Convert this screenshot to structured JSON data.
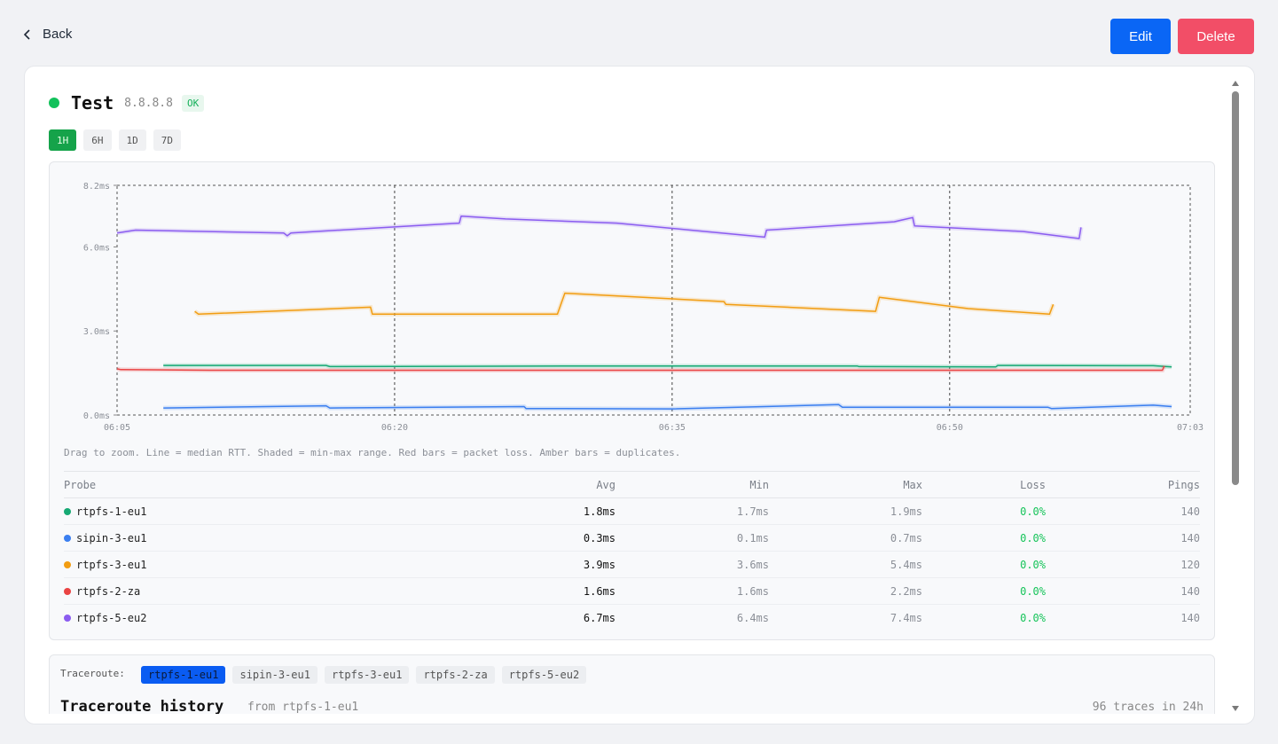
{
  "header": {
    "back_label": "Back",
    "edit_label": "Edit",
    "delete_label": "Delete"
  },
  "target": {
    "name": "Test",
    "ip": "8.8.8.8",
    "status": "OK"
  },
  "ranges": [
    "1H",
    "6H",
    "1D",
    "7D"
  ],
  "active_range": "1H",
  "hint": "Drag to zoom. Line = median RTT. Shaded = min-max range. Red bars = packet loss. Amber bars = duplicates.",
  "table": {
    "headers": [
      "Probe",
      "Avg",
      "Min",
      "Max",
      "Loss",
      "Pings"
    ],
    "rows": [
      {
        "probe": "rtpfs-1-eu1",
        "avg": "1.8ms",
        "min": "1.7ms",
        "max": "1.9ms",
        "loss": "0.0%",
        "pings": "140",
        "color": "#16a974"
      },
      {
        "probe": "sipin-3-eu1",
        "avg": "0.3ms",
        "min": "0.1ms",
        "max": "0.7ms",
        "loss": "0.0%",
        "pings": "140",
        "color": "#3b7ff0"
      },
      {
        "probe": "rtpfs-3-eu1",
        "avg": "3.9ms",
        "min": "3.6ms",
        "max": "5.4ms",
        "loss": "0.0%",
        "pings": "120",
        "color": "#f29d12"
      },
      {
        "probe": "rtpfs-2-za",
        "avg": "1.6ms",
        "min": "1.6ms",
        "max": "2.2ms",
        "loss": "0.0%",
        "pings": "140",
        "color": "#ea4343"
      },
      {
        "probe": "rtpfs-5-eu2",
        "avg": "6.7ms",
        "min": "6.4ms",
        "max": "7.4ms",
        "loss": "0.0%",
        "pings": "140",
        "color": "#8b5cf0"
      }
    ]
  },
  "traceroute": {
    "label": "Traceroute:",
    "tabs": [
      "rtpfs-1-eu1",
      "sipin-3-eu1",
      "rtpfs-3-eu1",
      "rtpfs-2-za",
      "rtpfs-5-eu2"
    ],
    "active": "rtpfs-1-eu1",
    "title": "Traceroute history",
    "from": "from rtpfs-1-eu1",
    "count": "96 traces in 24h"
  },
  "chart_data": {
    "type": "line",
    "y_ticks": [
      "0.0ms",
      "3.0ms",
      "6.0ms",
      "8.2ms"
    ],
    "ylim": [
      0,
      8.2
    ],
    "x_ticks": [
      "06:05",
      "06:20",
      "06:35",
      "06:50",
      "07:03"
    ],
    "x_tick_minutes": [
      0,
      15,
      30,
      45,
      58
    ],
    "xlim_minutes": [
      0,
      58
    ],
    "series": [
      {
        "name": "rtpfs-5-eu2",
        "color": "#8b5cf0",
        "points": [
          [
            0,
            6.5
          ],
          [
            1,
            6.6
          ],
          [
            9,
            6.5
          ],
          [
            9.2,
            6.4
          ],
          [
            9.4,
            6.5
          ],
          [
            18.5,
            6.85
          ],
          [
            18.6,
            7.1
          ],
          [
            21,
            7.0
          ],
          [
            27,
            6.85
          ],
          [
            31,
            6.6
          ],
          [
            35,
            6.35
          ],
          [
            35.1,
            6.6
          ],
          [
            42,
            6.9
          ],
          [
            43,
            7.05
          ],
          [
            43.1,
            6.75
          ],
          [
            49,
            6.55
          ],
          [
            52,
            6.3
          ],
          [
            52.1,
            6.7
          ]
        ]
      },
      {
        "name": "rtpfs-3-eu1",
        "color": "#f29d12",
        "points": [
          [
            4.2,
            3.7
          ],
          [
            4.4,
            3.6
          ],
          [
            13.7,
            3.85
          ],
          [
            13.8,
            3.6
          ],
          [
            23.8,
            3.6
          ],
          [
            24.2,
            4.35
          ],
          [
            32.8,
            4.05
          ],
          [
            32.9,
            3.95
          ],
          [
            41,
            3.7
          ],
          [
            41.2,
            4.2
          ],
          [
            46,
            3.8
          ],
          [
            50.4,
            3.6
          ],
          [
            50.6,
            3.95
          ]
        ]
      },
      {
        "name": "rtpfs-1-eu1",
        "color": "#16a974",
        "points": [
          [
            2.5,
            1.77
          ],
          [
            11.3,
            1.77
          ],
          [
            11.5,
            1.73
          ],
          [
            20,
            1.74
          ],
          [
            25,
            1.75
          ],
          [
            40,
            1.75
          ],
          [
            40.1,
            1.73
          ],
          [
            47.5,
            1.72
          ],
          [
            47.6,
            1.77
          ],
          [
            56,
            1.76
          ],
          [
            57,
            1.72
          ]
        ]
      },
      {
        "name": "rtpfs-2-za",
        "color": "#ea4343",
        "points": [
          [
            0,
            1.65
          ],
          [
            0.2,
            1.62
          ],
          [
            5,
            1.6
          ],
          [
            20,
            1.6
          ],
          [
            40,
            1.6
          ],
          [
            56.5,
            1.6
          ],
          [
            56.6,
            1.75
          ]
        ]
      },
      {
        "name": "sipin-3-eu1",
        "color": "#3b7ff0",
        "points": [
          [
            2.5,
            0.25
          ],
          [
            11.3,
            0.33
          ],
          [
            11.5,
            0.25
          ],
          [
            22,
            0.3
          ],
          [
            22.1,
            0.23
          ],
          [
            30,
            0.22
          ],
          [
            35,
            0.3
          ],
          [
            39,
            0.37
          ],
          [
            39.2,
            0.28
          ],
          [
            50.3,
            0.28
          ],
          [
            50.5,
            0.23
          ],
          [
            56,
            0.35
          ],
          [
            57,
            0.3
          ]
        ]
      }
    ]
  }
}
